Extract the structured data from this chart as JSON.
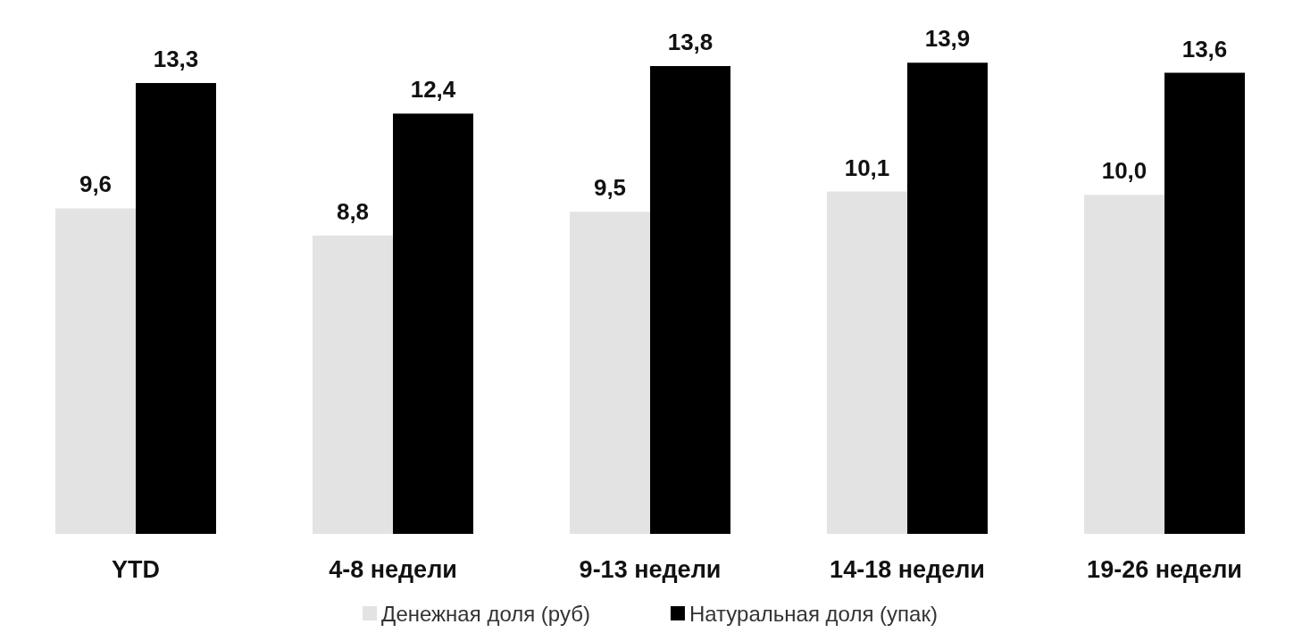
{
  "chart_data": {
    "type": "bar",
    "categories": [
      "YTD",
      "4-8 недели",
      "9-13 недели",
      "14-18 недели",
      "19-26 недели"
    ],
    "series": [
      {
        "name": "Денежная доля (руб)",
        "color": "#e3e3e3",
        "values": [
          9.6,
          8.8,
          9.5,
          10.1,
          10.0
        ],
        "value_labels": [
          "9,6",
          "8,8",
          "9,5",
          "10,1",
          "10,0"
        ]
      },
      {
        "name": "Натуральная доля (упак)",
        "color": "#000000",
        "values": [
          13.3,
          12.4,
          13.8,
          13.9,
          13.6
        ],
        "value_labels": [
          "13,3",
          "12,4",
          "13,8",
          "13,9",
          "13,6"
        ]
      }
    ],
    "legend": "bottom",
    "grid": false
  }
}
